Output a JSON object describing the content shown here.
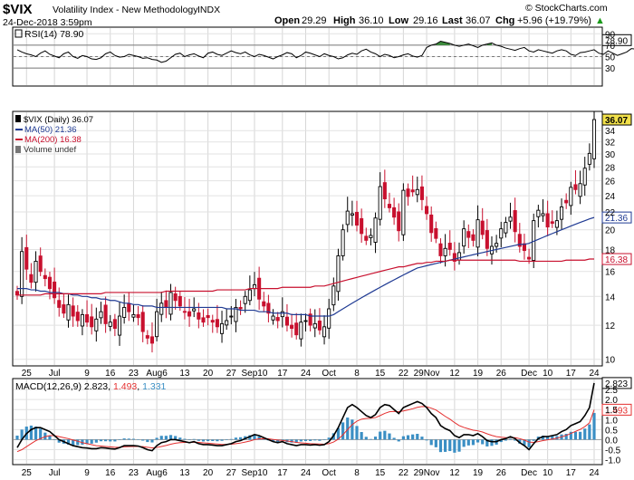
{
  "header": {
    "symbol": "$VIX",
    "name": "Volatility Index - New Methodology",
    "exchange": "INDX",
    "date_line": "24-Dec-2018 3:59pm",
    "brand": "© StockCharts.com",
    "open_label": "Open",
    "open": "29.29",
    "high_label": "High",
    "high": "36.10",
    "low_label": "Low",
    "low": "29.16",
    "last_label": "Last",
    "last": "36.07",
    "chg_label": "Chg",
    "chg": "+5.96 (+19.79%)",
    "chg_arrow": "▲"
  },
  "colors": {
    "up": "#000000",
    "down": "#c8102e",
    "ma50": "#1f3a93",
    "ma200": "#c8102e",
    "macd_line": "#000000",
    "signal_line": "#e53030",
    "hist": "#3b8fc4",
    "rsi_fill": "#3c8c3c",
    "last_tag": "#f2e14a"
  },
  "chart_data": [
    {
      "type": "line",
      "title": "RSI(14) 78.90",
      "ylim": [
        0,
        100
      ],
      "y_ticks": [
        30,
        50,
        70,
        90
      ],
      "ref_lines": [
        30,
        50,
        70
      ],
      "last_value": "78.90",
      "series": [
        {
          "name": "RSI(14)",
          "values": [
            62,
            58,
            55,
            53,
            50,
            56,
            60,
            54,
            51,
            48,
            55,
            58,
            50,
            47,
            52,
            50,
            46,
            45,
            48,
            55,
            58,
            52,
            49,
            50,
            54,
            52,
            50,
            47,
            48,
            45,
            44,
            40,
            42,
            48,
            54,
            56,
            50,
            53,
            55,
            51,
            48,
            56,
            58,
            54,
            52,
            56,
            60,
            57,
            55,
            58,
            53,
            50,
            54,
            52,
            49,
            46,
            50,
            53,
            57,
            55,
            48,
            52,
            58,
            56,
            53,
            50,
            55,
            52,
            50,
            46,
            48,
            53,
            56,
            54,
            60,
            63,
            58,
            55,
            50,
            54,
            52,
            48,
            50,
            53,
            55,
            51,
            49,
            52,
            66,
            70,
            72,
            77,
            75,
            73,
            70,
            68,
            70,
            72,
            69,
            66,
            70,
            72,
            74,
            70,
            68,
            65,
            63,
            61,
            64,
            66,
            60,
            58,
            62,
            60,
            58,
            56,
            60,
            62,
            60,
            54,
            52,
            57,
            58,
            60,
            62,
            56,
            54,
            60,
            56,
            52,
            55,
            58,
            64,
            63,
            66,
            70,
            74,
            78.9
          ]
        }
      ]
    },
    {
      "type": "candlestick",
      "title": "$VIX (Daily) 36.07",
      "legend": [
        "$VIX (Daily) 36.07",
        "MA(50) 21.36",
        "MA(200) 16.38",
        "Volume undef"
      ],
      "y_scale": "log",
      "ylim": [
        9.7,
        37.5
      ],
      "y_ticks": [
        10,
        12,
        14,
        16,
        18,
        20,
        22,
        24,
        26,
        28,
        30,
        32,
        34
      ],
      "last_tags": [
        "36.07",
        "21.36",
        "16.38"
      ],
      "x_ticks": [
        {
          "i": 2,
          "label": "25"
        },
        {
          "i": 8,
          "label": "Jul"
        },
        {
          "i": 15,
          "label": "9"
        },
        {
          "i": 20,
          "label": "16"
        },
        {
          "i": 25,
          "label": "23"
        },
        {
          "i": 30,
          "label": "Aug6"
        },
        {
          "i": 36,
          "label": "13"
        },
        {
          "i": 41,
          "label": "20"
        },
        {
          "i": 46,
          "label": "27"
        },
        {
          "i": 51,
          "label": "Sep10"
        },
        {
          "i": 57,
          "label": "17"
        },
        {
          "i": 62,
          "label": "24"
        },
        {
          "i": 67,
          "label": "Oct"
        },
        {
          "i": 73,
          "label": "8"
        },
        {
          "i": 78,
          "label": "15"
        },
        {
          "i": 83,
          "label": "22"
        },
        {
          "i": 88,
          "label": "29Nov"
        },
        {
          "i": 94,
          "label": "12"
        },
        {
          "i": 99,
          "label": "19"
        },
        {
          "i": 104,
          "label": "26"
        },
        {
          "i": 110,
          "label": "Dec"
        },
        {
          "i": 114,
          "label": "10"
        },
        {
          "i": 119,
          "label": "17"
        },
        {
          "i": 124,
          "label": "24"
        }
      ],
      "close": [
        14.1,
        17.8,
        16.2,
        15.1,
        16.9,
        16.0,
        15.4,
        14.6,
        13.9,
        13.2,
        12.8,
        13.4,
        12.6,
        12.3,
        12.7,
        12.2,
        11.9,
        12.4,
        12.9,
        12.1,
        12.2,
        11.8,
        12.6,
        13.2,
        12.9,
        12.7,
        12.5,
        11.6,
        11.2,
        10.9,
        12.9,
        13.5,
        13.2,
        14.3,
        13.7,
        13.3,
        12.9,
        12.6,
        13.1,
        12.4,
        12.2,
        12.5,
        12.2,
        11.9,
        12.1,
        12.3,
        12.6,
        13.2,
        13.1,
        14.0,
        14.5,
        14.9,
        13.8,
        13.3,
        12.8,
        12.6,
        12.3,
        12.9,
        12.0,
        11.8,
        11.4,
        12.2,
        12.3,
        12.0,
        12.1,
        11.7,
        11.9,
        13.1,
        14.8,
        17.4,
        20.0,
        22.1,
        21.8,
        20.5,
        19.6,
        18.9,
        19.4,
        21.3,
        25.2,
        23.6,
        22.5,
        21.4,
        19.9,
        24.7,
        23.9,
        24.5,
        24.8,
        23.5,
        21.8,
        19.7,
        19.1,
        17.4,
        18.1,
        18.0,
        16.9,
        17.7,
        20.1,
        19.2,
        18.9,
        21.1,
        19.5,
        18.1,
        18.3,
        18.6,
        20.1,
        20.8,
        21.4,
        19.8,
        18.3,
        17.9,
        17.1,
        21.0,
        22.2,
        21.8,
        20.3,
        20.7,
        21.0,
        22.6,
        23.1,
        25.1,
        24.8,
        25.6,
        27.8,
        30.1,
        36.07
      ],
      "ma50": [
        14.6,
        14.6,
        14.6,
        14.5,
        14.5,
        14.4,
        14.4,
        14.3,
        14.3,
        14.3,
        14.2,
        14.2,
        14.1,
        14.1,
        14.0,
        14.0,
        13.9,
        13.9,
        13.8,
        13.8,
        13.7,
        13.7,
        13.6,
        13.5,
        13.5,
        13.4,
        13.4,
        13.3,
        13.3,
        13.3,
        13.2,
        13.2,
        13.2,
        13.2,
        13.2,
        13.2,
        13.2,
        13.2,
        13.2,
        13.2,
        13.2,
        13.2,
        13.2,
        13.2,
        13.2,
        13.1,
        13.1,
        13.1,
        13.0,
        13.0,
        13.0,
        13.0,
        12.9,
        12.9,
        12.9,
        12.8,
        12.8,
        12.8,
        12.8,
        12.7,
        12.7,
        12.7,
        12.7,
        12.6,
        12.6,
        12.6,
        12.6,
        12.6,
        12.7,
        12.9,
        13.1,
        13.3,
        13.5,
        13.7,
        13.9,
        14.1,
        14.3,
        14.5,
        14.7,
        14.9,
        15.1,
        15.3,
        15.5,
        15.7,
        15.9,
        16.1,
        16.3,
        16.4,
        16.5,
        16.6,
        16.7,
        16.8,
        16.9,
        17.0,
        17.1,
        17.2,
        17.3,
        17.4,
        17.5,
        17.6,
        17.7,
        17.8,
        17.9,
        18.0,
        18.1,
        18.2,
        18.3,
        18.4,
        18.5,
        18.5,
        18.6,
        18.8,
        19.0,
        19.2,
        19.4,
        19.6,
        19.8,
        20.0,
        20.2,
        20.4,
        20.6,
        20.8,
        21.0,
        21.2,
        21.36
      ],
      "ma200": [
        14.1,
        14.1,
        14.1,
        14.1,
        14.1,
        14.1,
        14.2,
        14.2,
        14.2,
        14.2,
        14.2,
        14.2,
        14.2,
        14.2,
        14.2,
        14.2,
        14.2,
        14.2,
        14.2,
        14.3,
        14.3,
        14.3,
        14.3,
        14.3,
        14.3,
        14.3,
        14.3,
        14.3,
        14.3,
        14.3,
        14.3,
        14.3,
        14.4,
        14.4,
        14.4,
        14.4,
        14.4,
        14.4,
        14.4,
        14.4,
        14.4,
        14.4,
        14.4,
        14.5,
        14.5,
        14.5,
        14.5,
        14.5,
        14.5,
        14.5,
        14.6,
        14.6,
        14.6,
        14.6,
        14.6,
        14.6,
        14.6,
        14.7,
        14.7,
        14.7,
        14.7,
        14.7,
        14.7,
        14.7,
        14.8,
        14.8,
        14.8,
        14.9,
        15.0,
        15.1,
        15.2,
        15.3,
        15.4,
        15.5,
        15.6,
        15.7,
        15.8,
        15.9,
        16.0,
        16.1,
        16.2,
        16.3,
        16.4,
        16.4,
        16.5,
        16.6,
        16.7,
        16.7,
        16.8,
        16.8,
        16.9,
        16.9,
        16.9,
        17.0,
        17.0,
        17.0,
        17.0,
        17.0,
        17.0,
        17.0,
        17.0,
        17.0,
        17.0,
        17.0,
        17.0,
        17.0,
        17.0,
        17.0,
        16.9,
        16.9,
        16.9,
        16.9,
        16.9,
        16.9,
        16.9,
        16.9,
        16.9,
        16.9,
        17.0,
        17.0,
        17.0,
        17.0,
        17.0,
        17.1,
        17.1
      ]
    },
    {
      "type": "line",
      "title": "MACD(12,26,9) 2.823, 1.493, 1.331",
      "ylim": [
        -1.2,
        3.0
      ],
      "y_ticks": [
        -1.0,
        -0.5,
        0.0,
        0.5,
        1.0,
        1.5,
        2.0,
        2.5
      ],
      "y_tick_labels": [
        "-1.0",
        "-0.5",
        "0.0",
        "0.5",
        "1.0",
        "1.5",
        "2.0",
        "2.5"
      ],
      "last_tags": [
        "2.823",
        "1.493"
      ],
      "series": [
        {
          "name": "MACD(12,26,9)",
          "values": [
            -0.4,
            0.0,
            0.3,
            0.5,
            0.6,
            0.6,
            0.5,
            0.4,
            0.2,
            0.0,
            -0.1,
            -0.2,
            -0.3,
            -0.35,
            -0.4,
            -0.42,
            -0.45,
            -0.45,
            -0.4,
            -0.42,
            -0.45,
            -0.47,
            -0.4,
            -0.3,
            -0.3,
            -0.3,
            -0.32,
            -0.4,
            -0.5,
            -0.55,
            -0.3,
            -0.15,
            -0.1,
            0.0,
            0.0,
            -0.05,
            -0.1,
            -0.15,
            -0.1,
            -0.2,
            -0.25,
            -0.25,
            -0.27,
            -0.3,
            -0.3,
            -0.25,
            -0.2,
            -0.1,
            -0.05,
            0.05,
            0.15,
            0.25,
            0.2,
            0.1,
            0.0,
            -0.1,
            -0.15,
            -0.1,
            -0.2,
            -0.25,
            -0.3,
            -0.25,
            -0.25,
            -0.27,
            -0.25,
            -0.28,
            -0.25,
            -0.1,
            0.2,
            0.6,
            1.1,
            1.6,
            1.75,
            1.6,
            1.4,
            1.2,
            1.1,
            1.25,
            1.6,
            1.75,
            1.7,
            1.5,
            1.3,
            1.6,
            1.7,
            1.8,
            1.9,
            1.8,
            1.6,
            1.3,
            1.1,
            0.7,
            0.55,
            0.45,
            0.2,
            0.1,
            0.25,
            0.25,
            0.2,
            0.3,
            0.15,
            -0.05,
            -0.1,
            -0.1,
            0.0,
            0.05,
            0.15,
            0.05,
            -0.15,
            -0.3,
            -0.5,
            -0.2,
            0.05,
            0.15,
            0.15,
            0.2,
            0.25,
            0.4,
            0.5,
            0.7,
            0.8,
            0.9,
            1.2,
            1.6,
            2.823
          ]
        },
        {
          "name": "signal",
          "values": [
            -0.6,
            -0.5,
            -0.35,
            -0.2,
            -0.05,
            0.05,
            0.15,
            0.2,
            0.2,
            0.15,
            0.1,
            0.05,
            -0.02,
            -0.08,
            -0.15,
            -0.2,
            -0.25,
            -0.3,
            -0.32,
            -0.34,
            -0.36,
            -0.38,
            -0.38,
            -0.36,
            -0.35,
            -0.34,
            -0.34,
            -0.35,
            -0.38,
            -0.41,
            -0.39,
            -0.34,
            -0.29,
            -0.23,
            -0.18,
            -0.15,
            -0.14,
            -0.14,
            -0.13,
            -0.14,
            -0.16,
            -0.18,
            -0.2,
            -0.22,
            -0.24,
            -0.24,
            -0.23,
            -0.2,
            -0.17,
            -0.12,
            -0.07,
            0.0,
            0.04,
            0.05,
            0.04,
            0.01,
            -0.02,
            -0.04,
            -0.07,
            -0.1,
            -0.14,
            -0.16,
            -0.18,
            -0.2,
            -0.21,
            -0.22,
            -0.23,
            -0.2,
            -0.12,
            0.02,
            0.24,
            0.5,
            0.75,
            0.92,
            1.02,
            1.06,
            1.07,
            1.1,
            1.2,
            1.31,
            1.39,
            1.41,
            1.39,
            1.43,
            1.48,
            1.54,
            1.61,
            1.65,
            1.64,
            1.57,
            1.48,
            1.32,
            1.16,
            1.02,
            0.85,
            0.7,
            0.61,
            0.54,
            0.47,
            0.44,
            0.38,
            0.29,
            0.21,
            0.15,
            0.12,
            0.1,
            0.11,
            0.1,
            0.05,
            -0.02,
            -0.12,
            -0.14,
            -0.1,
            -0.05,
            -0.01,
            0.03,
            0.07,
            0.14,
            0.21,
            0.31,
            0.41,
            0.51,
            0.65,
            0.84,
            1.493
          ]
        },
        {
          "name": "histogram",
          "values": [
            0.2,
            0.5,
            0.65,
            0.7,
            0.65,
            0.55,
            0.35,
            0.2,
            0.0,
            -0.15,
            -0.2,
            -0.25,
            -0.28,
            -0.27,
            -0.25,
            -0.22,
            -0.2,
            -0.15,
            -0.08,
            -0.08,
            -0.09,
            -0.09,
            -0.02,
            0.06,
            0.05,
            0.04,
            0.02,
            -0.05,
            -0.12,
            -0.14,
            0.09,
            0.19,
            0.19,
            0.23,
            0.18,
            0.1,
            0.04,
            -0.01,
            0.03,
            -0.06,
            -0.09,
            -0.07,
            -0.07,
            -0.08,
            -0.06,
            -0.01,
            0.03,
            0.1,
            0.12,
            0.17,
            0.22,
            0.25,
            0.16,
            0.05,
            -0.04,
            -0.11,
            -0.13,
            -0.06,
            -0.13,
            -0.15,
            -0.16,
            -0.09,
            -0.07,
            -0.07,
            -0.04,
            -0.06,
            -0.02,
            0.1,
            0.32,
            0.58,
            0.86,
            1.1,
            1.0,
            0.68,
            0.38,
            0.14,
            0.03,
            0.15,
            0.4,
            0.44,
            0.31,
            0.09,
            -0.09,
            0.17,
            0.22,
            0.26,
            0.29,
            0.15,
            -0.04,
            -0.27,
            -0.38,
            -0.62,
            -0.61,
            -0.57,
            -0.65,
            -0.6,
            -0.36,
            -0.29,
            -0.27,
            -0.14,
            -0.23,
            -0.34,
            -0.31,
            -0.25,
            -0.12,
            -0.05,
            0.04,
            -0.05,
            -0.2,
            -0.28,
            -0.38,
            -0.06,
            0.15,
            0.2,
            0.16,
            0.17,
            0.18,
            0.26,
            0.29,
            0.39,
            0.39,
            0.39,
            0.55,
            0.76,
            1.331
          ]
        }
      ]
    }
  ]
}
